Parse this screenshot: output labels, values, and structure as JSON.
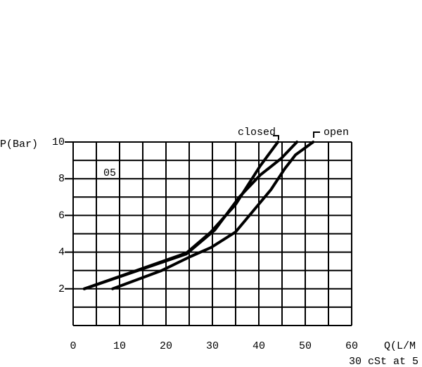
{
  "chart_data": {
    "type": "line",
    "y_label": "P(Bar)",
    "x_label": "Q(L/M",
    "note": "30 cSt at 5",
    "annotations": [
      "closed",
      "open",
      "05"
    ],
    "xlim": [
      0,
      60
    ],
    "xticks": [
      0,
      10,
      20,
      30,
      40,
      50,
      60
    ],
    "xminorticks": [
      5,
      15,
      25,
      35,
      45,
      55
    ],
    "ylim": [
      0,
      10
    ],
    "yticks": [
      2,
      4,
      6,
      8,
      10
    ],
    "yminorticks": [
      1,
      3,
      5,
      7,
      9
    ],
    "grid": true,
    "series": [
      {
        "color": "#000000",
        "x": [
          2.4,
          24.4,
          29.7,
          35,
          40.3,
          44.1
        ],
        "values": [
          2,
          3.95,
          5.1,
          6.6,
          8.7,
          10
        ]
      },
      {
        "color": "#000000",
        "x": [
          2.4,
          24.4,
          30.5,
          35.8,
          40.3,
          44.8,
          48.2
        ],
        "values": [
          2,
          3.9,
          5.2,
          7,
          8.2,
          9.1,
          10
        ]
      },
      {
        "color": "#000000",
        "x": [
          8.5,
          19.1,
          25.2,
          29.7,
          35,
          38.8,
          42.6,
          45.6,
          47.9,
          51.7
        ],
        "values": [
          2,
          3,
          3.75,
          4.25,
          5.1,
          6.25,
          7.4,
          8.55,
          9.3,
          10
        ]
      }
    ]
  }
}
